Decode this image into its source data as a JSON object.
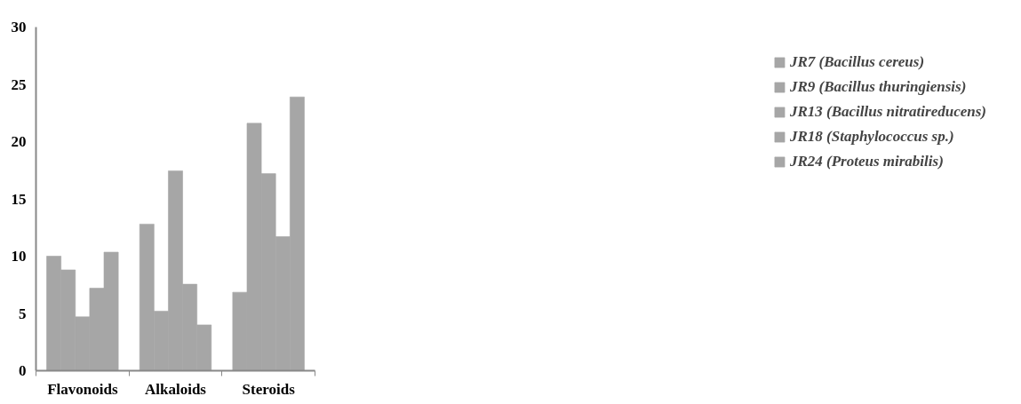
{
  "chart_data": {
    "type": "bar",
    "categories": [
      "Flavonoids",
      "Alkaloids",
      "Steroids"
    ],
    "series": [
      {
        "name": "JR7 (Bacillus cereus)",
        "color": "#a6a6a6",
        "values": [
          10.0,
          12.8,
          6.85
        ]
      },
      {
        "name": "JR9 (Bacillus thuringiensis)",
        "color": "#a6a6a6",
        "values": [
          8.8,
          5.2,
          21.6
        ]
      },
      {
        "name": "JR13 (Bacillus nitratireducens)",
        "color": "#a6a6a6",
        "values": [
          4.7,
          17.45,
          17.2
        ]
      },
      {
        "name": "JR18 (Staphylococcus sp.)",
        "color": "#a6a6a6",
        "values": [
          7.2,
          7.55,
          11.7
        ]
      },
      {
        "name": "JR24 (Proteus mirabilis)",
        "color": "#a6a6a6",
        "values": [
          10.35,
          4.0,
          23.9
        ]
      }
    ],
    "ylim": [
      0,
      30
    ],
    "yticks": [
      0,
      5,
      10,
      15,
      20,
      25,
      30
    ],
    "grid": false,
    "legend": "right"
  }
}
